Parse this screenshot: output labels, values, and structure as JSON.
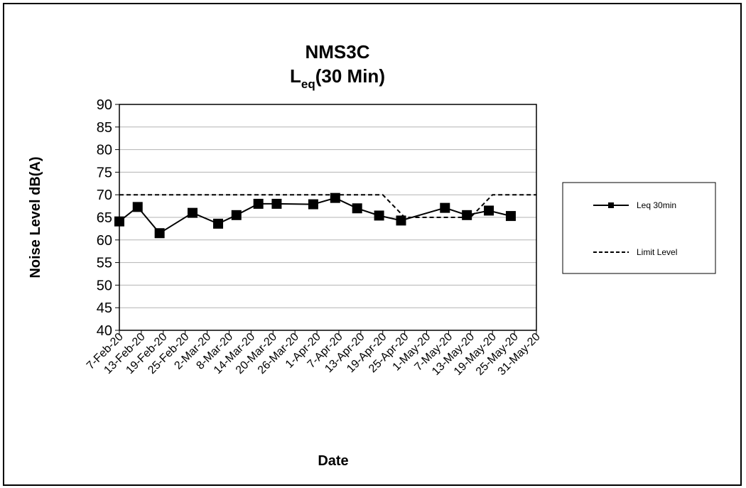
{
  "chart_data": {
    "type": "line",
    "title_line1": "NMS3C",
    "title_line2_main": "L",
    "title_line2_sub": "eq",
    "title_line2_rest": "(30 Min)",
    "xlabel": "Date",
    "ylabel": "Noise Level dB(A)",
    "ylim": [
      40,
      90
    ],
    "ytick_step": 5,
    "yticks": [
      "40",
      "45",
      "50",
      "55",
      "60",
      "65",
      "70",
      "75",
      "80",
      "85",
      "90"
    ],
    "xlim": [
      "2020-02-07",
      "2020-05-31"
    ],
    "xtick_dates": [
      "2020-02-07",
      "2020-02-13",
      "2020-02-19",
      "2020-02-25",
      "2020-03-02",
      "2020-03-08",
      "2020-03-14",
      "2020-03-20",
      "2020-03-26",
      "2020-04-01",
      "2020-04-07",
      "2020-04-13",
      "2020-04-19",
      "2020-04-25",
      "2020-05-01",
      "2020-05-07",
      "2020-05-13",
      "2020-05-19",
      "2020-05-25",
      "2020-05-31"
    ],
    "xtick_labels": [
      "7-Feb-20",
      "13-Feb-20",
      "19-Feb-20",
      "25-Feb-20",
      "2-Mar-20",
      "8-Mar-20",
      "14-Mar-20",
      "20-Mar-20",
      "26-Mar-20",
      "1-Apr-20",
      "7-Apr-20",
      "13-Apr-20",
      "19-Apr-20",
      "25-Apr-20",
      "1-May-20",
      "7-May-20",
      "13-May-20",
      "19-May-20",
      "25-May-20",
      "31-May-20"
    ],
    "grid": true,
    "legend_position": "right",
    "series": [
      {
        "name": "Leq 30min",
        "style": "solid",
        "marker": "square",
        "color": "#000000",
        "x": [
          "2020-02-07",
          "2020-02-12",
          "2020-02-18",
          "2020-02-27",
          "2020-03-05",
          "2020-03-10",
          "2020-03-16",
          "2020-03-21",
          "2020-03-31",
          "2020-04-06",
          "2020-04-12",
          "2020-04-18",
          "2020-04-24",
          "2020-05-06",
          "2020-05-12",
          "2020-05-18",
          "2020-05-24"
        ],
        "y": [
          64.1,
          67.3,
          61.5,
          66.0,
          63.6,
          65.5,
          68.0,
          68.0,
          67.9,
          69.3,
          67.0,
          65.4,
          64.3,
          67.1,
          65.5,
          66.5,
          65.3
        ]
      },
      {
        "name": "Limit Level",
        "style": "dashed",
        "marker": "none",
        "color": "#000000",
        "x": [
          "2020-02-07",
          "2020-04-19",
          "2020-04-25",
          "2020-05-13",
          "2020-05-19",
          "2020-05-31"
        ],
        "y": [
          70,
          70,
          65,
          65,
          70,
          70
        ]
      }
    ]
  }
}
